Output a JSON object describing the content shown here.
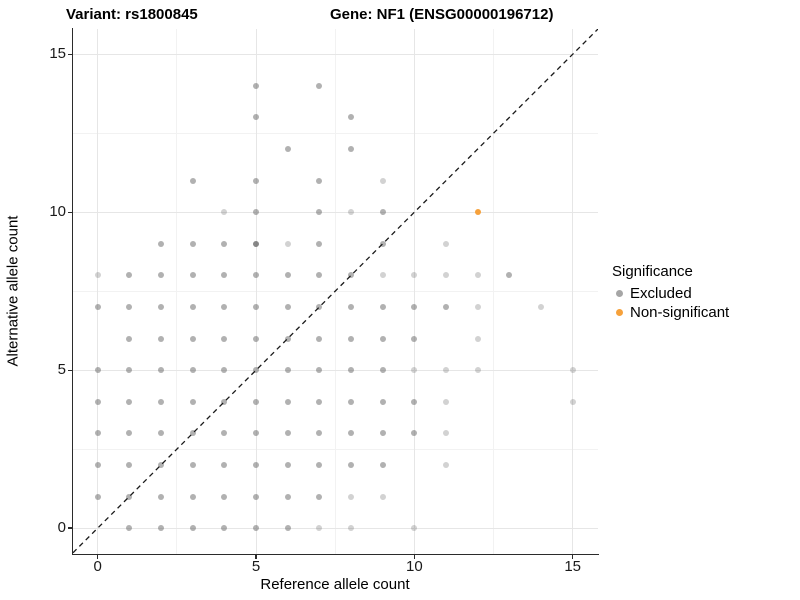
{
  "chart_data": {
    "type": "scatter",
    "title_left": "Variant: rs1800845",
    "title_right": "Gene: NF1 (ENSG00000196712)",
    "xlabel": "Reference allele count",
    "ylabel": "Alternative allele count",
    "xlim": [
      -0.78,
      15.8
    ],
    "ylim": [
      -0.82,
      15.8
    ],
    "x_ticks": [
      0,
      5,
      10,
      15
    ],
    "y_ticks": [
      0,
      5,
      10,
      15
    ],
    "x_tick_labels": [
      "0",
      "5",
      "10",
      "15"
    ],
    "y_tick_labels": [
      "0",
      "5",
      "10",
      "15"
    ],
    "minor_ticks": [
      2.5,
      7.5,
      12.5
    ],
    "grid": true,
    "reference_line": {
      "style": "dashed",
      "equation": "y = x",
      "color": "#1a1a1a"
    },
    "point_shades": {
      "m": "rgba(105,105,105,0.52)",
      "l": "rgba(105,105,105,0.30)",
      "d": "rgba(105,105,105,0.80)"
    },
    "series": [
      {
        "name": "Excluded",
        "color": "#a6a6a6",
        "points": [
          [
            1,
            0,
            "m"
          ],
          [
            2,
            0,
            "m"
          ],
          [
            3,
            0,
            "m"
          ],
          [
            4,
            0,
            "m"
          ],
          [
            5,
            0,
            "m"
          ],
          [
            6,
            0,
            "m"
          ],
          [
            7,
            0,
            "l"
          ],
          [
            8,
            0,
            "l"
          ],
          [
            10,
            0,
            "l"
          ],
          [
            0,
            1,
            "m"
          ],
          [
            1,
            1,
            "m"
          ],
          [
            2,
            1,
            "m"
          ],
          [
            3,
            1,
            "m"
          ],
          [
            4,
            1,
            "m"
          ],
          [
            5,
            1,
            "m"
          ],
          [
            6,
            1,
            "m"
          ],
          [
            7,
            1,
            "m"
          ],
          [
            8,
            1,
            "l"
          ],
          [
            9,
            1,
            "l"
          ],
          [
            0,
            2,
            "m"
          ],
          [
            1,
            2,
            "m"
          ],
          [
            2,
            2,
            "m"
          ],
          [
            3,
            2,
            "m"
          ],
          [
            4,
            2,
            "m"
          ],
          [
            5,
            2,
            "m"
          ],
          [
            6,
            2,
            "m"
          ],
          [
            7,
            2,
            "m"
          ],
          [
            8,
            2,
            "m"
          ],
          [
            9,
            2,
            "m"
          ],
          [
            11,
            2,
            "l"
          ],
          [
            0,
            3,
            "m"
          ],
          [
            1,
            3,
            "m"
          ],
          [
            2,
            3,
            "m"
          ],
          [
            3,
            3,
            "m"
          ],
          [
            4,
            3,
            "m"
          ],
          [
            5,
            3,
            "m"
          ],
          [
            6,
            3,
            "m"
          ],
          [
            7,
            3,
            "m"
          ],
          [
            8,
            3,
            "m"
          ],
          [
            9,
            3,
            "m"
          ],
          [
            10,
            3,
            "m"
          ],
          [
            11,
            3,
            "l"
          ],
          [
            0,
            4,
            "m"
          ],
          [
            1,
            4,
            "m"
          ],
          [
            2,
            4,
            "m"
          ],
          [
            3,
            4,
            "m"
          ],
          [
            4,
            4,
            "m"
          ],
          [
            5,
            4,
            "m"
          ],
          [
            6,
            4,
            "m"
          ],
          [
            7,
            4,
            "m"
          ],
          [
            8,
            4,
            "m"
          ],
          [
            9,
            4,
            "m"
          ],
          [
            10,
            4,
            "m"
          ],
          [
            11,
            4,
            "l"
          ],
          [
            15,
            4,
            "l"
          ],
          [
            0,
            5,
            "m"
          ],
          [
            1,
            5,
            "m"
          ],
          [
            2,
            5,
            "m"
          ],
          [
            3,
            5,
            "m"
          ],
          [
            4,
            5,
            "m"
          ],
          [
            5,
            5,
            "m"
          ],
          [
            6,
            5,
            "m"
          ],
          [
            7,
            5,
            "m"
          ],
          [
            8,
            5,
            "m"
          ],
          [
            9,
            5,
            "m"
          ],
          [
            10,
            5,
            "l"
          ],
          [
            11,
            5,
            "l"
          ],
          [
            12,
            5,
            "l"
          ],
          [
            15,
            5,
            "l"
          ],
          [
            1,
            6,
            "m"
          ],
          [
            2,
            6,
            "m"
          ],
          [
            3,
            6,
            "m"
          ],
          [
            4,
            6,
            "m"
          ],
          [
            5,
            6,
            "m"
          ],
          [
            6,
            6,
            "m"
          ],
          [
            7,
            6,
            "m"
          ],
          [
            8,
            6,
            "m"
          ],
          [
            9,
            6,
            "m"
          ],
          [
            10,
            6,
            "m"
          ],
          [
            12,
            6,
            "l"
          ],
          [
            0,
            7,
            "m"
          ],
          [
            1,
            7,
            "m"
          ],
          [
            2,
            7,
            "m"
          ],
          [
            3,
            7,
            "m"
          ],
          [
            4,
            7,
            "m"
          ],
          [
            5,
            7,
            "m"
          ],
          [
            6,
            7,
            "m"
          ],
          [
            7,
            7,
            "m"
          ],
          [
            8,
            7,
            "m"
          ],
          [
            9,
            7,
            "m"
          ],
          [
            10,
            7,
            "m"
          ],
          [
            11,
            7,
            "m"
          ],
          [
            12,
            7,
            "l"
          ],
          [
            14,
            7,
            "l"
          ],
          [
            0,
            8,
            "l"
          ],
          [
            1,
            8,
            "m"
          ],
          [
            2,
            8,
            "m"
          ],
          [
            3,
            8,
            "m"
          ],
          [
            4,
            8,
            "m"
          ],
          [
            5,
            8,
            "m"
          ],
          [
            6,
            8,
            "m"
          ],
          [
            7,
            8,
            "m"
          ],
          [
            8,
            8,
            "m"
          ],
          [
            9,
            8,
            "l"
          ],
          [
            10,
            8,
            "l"
          ],
          [
            11,
            8,
            "l"
          ],
          [
            12,
            8,
            "l"
          ],
          [
            13,
            8,
            "m"
          ],
          [
            2,
            9,
            "m"
          ],
          [
            3,
            9,
            "m"
          ],
          [
            4,
            9,
            "m"
          ],
          [
            5,
            9,
            "d"
          ],
          [
            6,
            9,
            "l"
          ],
          [
            7,
            9,
            "m"
          ],
          [
            9,
            9,
            "m"
          ],
          [
            11,
            9,
            "l"
          ],
          [
            4,
            10,
            "l"
          ],
          [
            5,
            10,
            "m"
          ],
          [
            7,
            10,
            "m"
          ],
          [
            8,
            10,
            "l"
          ],
          [
            9,
            10,
            "m"
          ],
          [
            3,
            11,
            "m"
          ],
          [
            5,
            11,
            "m"
          ],
          [
            7,
            11,
            "m"
          ],
          [
            9,
            11,
            "l"
          ],
          [
            6,
            12,
            "m"
          ],
          [
            8,
            12,
            "m"
          ],
          [
            5,
            13,
            "m"
          ],
          [
            8,
            13,
            "m"
          ],
          [
            5,
            14,
            "m"
          ],
          [
            7,
            14,
            "m"
          ]
        ]
      },
      {
        "name": "Non-significant",
        "color": "#f6a13b",
        "points": [
          [
            12,
            10,
            "o"
          ]
        ]
      }
    ],
    "legend": {
      "title": "Significance",
      "position": "right",
      "items": [
        {
          "label": "Excluded",
          "color": "#a6a6a6"
        },
        {
          "label": "Non-significant",
          "color": "#f6a13b"
        }
      ]
    }
  }
}
